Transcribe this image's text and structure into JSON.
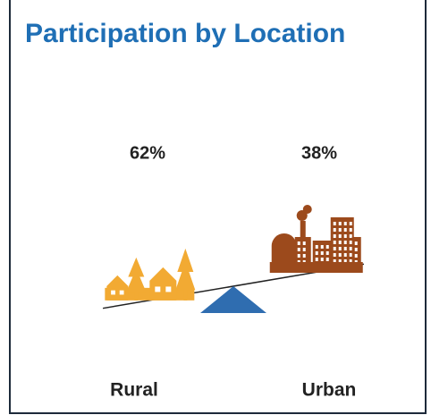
{
  "chart_data": {
    "type": "balance",
    "title": "Participation by Location",
    "categories": [
      "Rural",
      "Urban"
    ],
    "values": [
      62,
      38
    ],
    "value_labels": [
      "62%",
      "38%"
    ],
    "colors": [
      "#f2aa33",
      "#9c4a1c"
    ],
    "fulcrum_color": "#2f6db0"
  }
}
